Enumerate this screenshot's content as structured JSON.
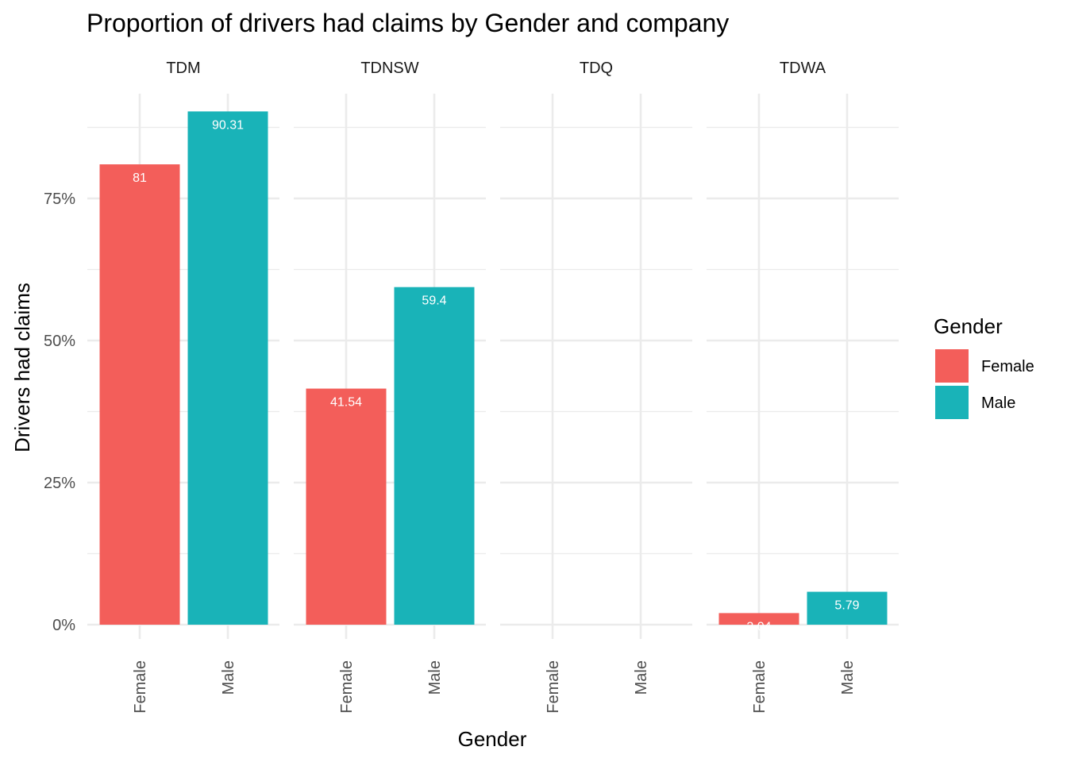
{
  "chart_data": {
    "type": "bar",
    "title": "Proportion of drivers had claims by Gender and company",
    "xlabel": "Gender",
    "ylabel": "Drivers had claims",
    "facets": [
      "TDM",
      "TDNSW",
      "TDQ",
      "TDWA"
    ],
    "categories": [
      "Female",
      "Male"
    ],
    "y_ticks": [
      0,
      25,
      50,
      75
    ],
    "y_tick_labels": [
      "0%",
      "25%",
      "50%",
      "75%"
    ],
    "ylim": [
      0,
      93
    ],
    "grid": true,
    "legend": {
      "title": "Gender",
      "position": "right",
      "entries": [
        {
          "label": "Female",
          "color": "#F8766D"
        },
        {
          "label": "Male",
          "color": "#00BFC4"
        }
      ]
    },
    "colors": {
      "Female": "#F35E5A",
      "Male": "#19B3B8"
    },
    "panels": [
      {
        "facet": "TDM",
        "values": [
          81,
          90.31
        ],
        "labels": [
          "81",
          "90.31"
        ]
      },
      {
        "facet": "TDNSW",
        "values": [
          41.54,
          59.4
        ],
        "labels": [
          "41.54",
          "59.4"
        ]
      },
      {
        "facet": "TDQ",
        "values": [
          0,
          0
        ],
        "labels": [
          "",
          ""
        ]
      },
      {
        "facet": "TDWA",
        "values": [
          2.04,
          5.79
        ],
        "labels": [
          "2.04",
          "5.79"
        ]
      }
    ]
  }
}
